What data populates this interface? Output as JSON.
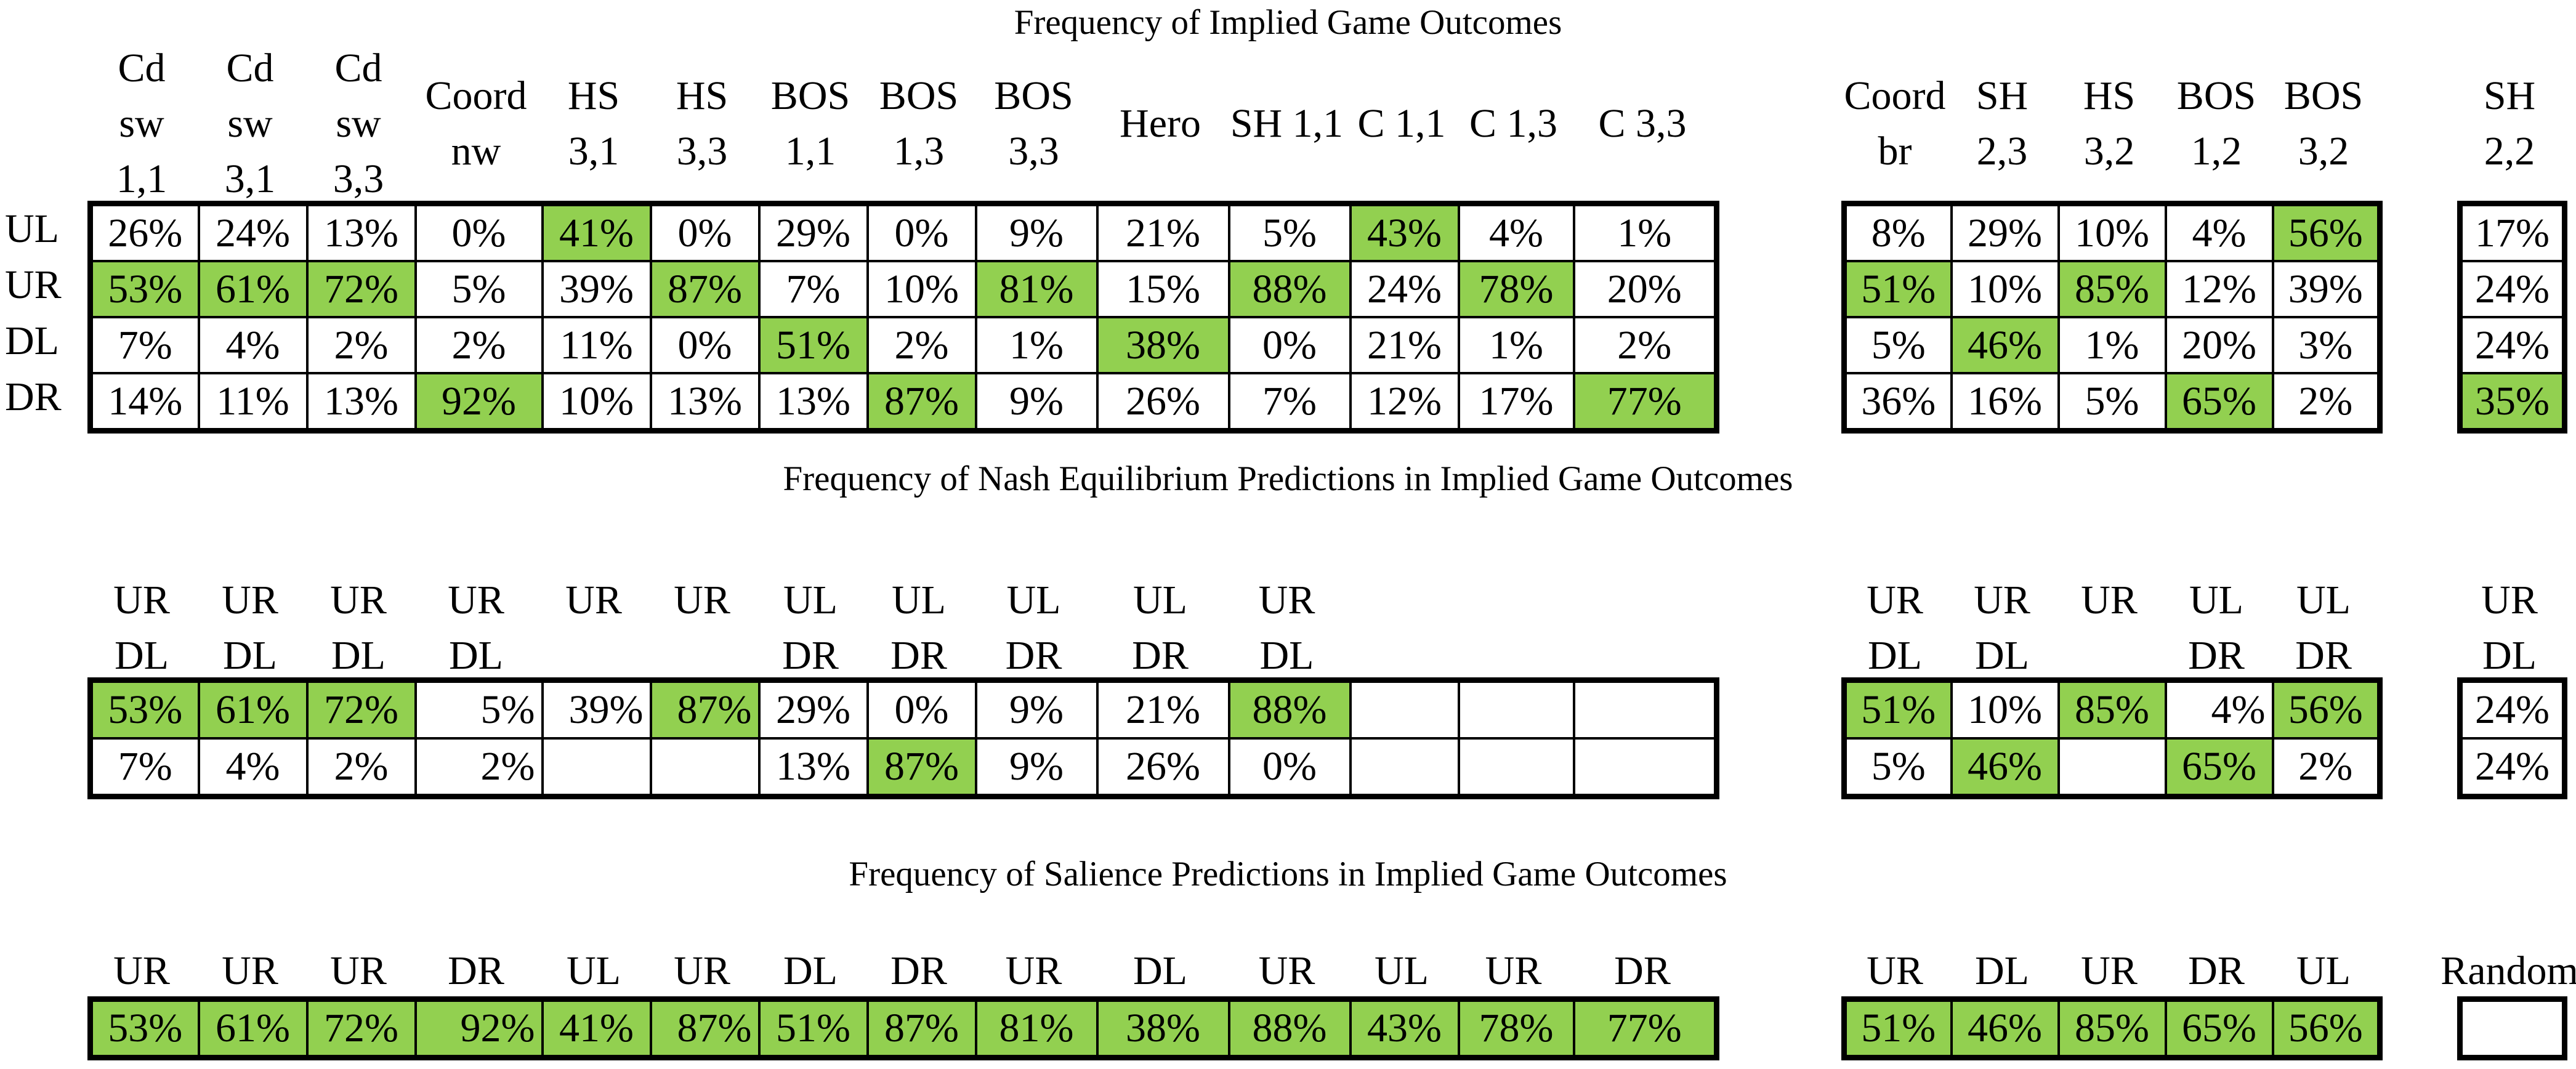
{
  "colors": {
    "highlight_green": "#92d050",
    "border": "#000000",
    "page_background": "#ffffff"
  },
  "sections": [
    {
      "title": "Frequency of Implied Game Outcomes",
      "row_labels": [
        "UL",
        "UR",
        "DL",
        "DR"
      ],
      "left": {
        "headers": [
          [
            "Cd",
            "sw",
            "1,1"
          ],
          [
            "Cd",
            "sw",
            "3,1"
          ],
          [
            "Cd",
            "sw",
            "3,3"
          ],
          [
            "Coord",
            "nw"
          ],
          [
            "HS",
            "3,1"
          ],
          [
            "HS",
            "3,3"
          ],
          [
            "BOS",
            "1,1"
          ],
          [
            "BOS",
            "1,3"
          ],
          [
            "BOS",
            "3,3"
          ],
          [
            "Hero"
          ],
          [
            "SH 1,1"
          ],
          [
            "C 1,1"
          ],
          [
            "C 1,3"
          ],
          [
            "C 3,3"
          ]
        ],
        "rows": [
          [
            {
              "v": "26%"
            },
            {
              "v": "24%"
            },
            {
              "v": "13%"
            },
            {
              "v": "0%"
            },
            {
              "v": "41%",
              "hl": true
            },
            {
              "v": "0%"
            },
            {
              "v": "29%"
            },
            {
              "v": "0%"
            },
            {
              "v": "9%"
            },
            {
              "v": "21%"
            },
            {
              "v": "5%"
            },
            {
              "v": "43%",
              "hl": true
            },
            {
              "v": "4%"
            },
            {
              "v": "1%"
            }
          ],
          [
            {
              "v": "53%",
              "hl": true
            },
            {
              "v": "61%",
              "hl": true
            },
            {
              "v": "72%",
              "hl": true
            },
            {
              "v": "5%"
            },
            {
              "v": "39%"
            },
            {
              "v": "87%",
              "hl": true
            },
            {
              "v": "7%"
            },
            {
              "v": "10%"
            },
            {
              "v": "81%",
              "hl": true
            },
            {
              "v": "15%"
            },
            {
              "v": "88%",
              "hl": true
            },
            {
              "v": "24%"
            },
            {
              "v": "78%",
              "hl": true
            },
            {
              "v": "20%"
            }
          ],
          [
            {
              "v": "7%"
            },
            {
              "v": "4%"
            },
            {
              "v": "2%"
            },
            {
              "v": "2%"
            },
            {
              "v": "11%"
            },
            {
              "v": "0%"
            },
            {
              "v": "51%",
              "hl": true
            },
            {
              "v": "2%"
            },
            {
              "v": "1%"
            },
            {
              "v": "38%",
              "hl": true
            },
            {
              "v": "0%"
            },
            {
              "v": "21%"
            },
            {
              "v": "1%"
            },
            {
              "v": "2%"
            }
          ],
          [
            {
              "v": "14%"
            },
            {
              "v": "11%"
            },
            {
              "v": "13%"
            },
            {
              "v": "92%",
              "hl": true
            },
            {
              "v": "10%"
            },
            {
              "v": "13%"
            },
            {
              "v": "13%"
            },
            {
              "v": "87%",
              "hl": true
            },
            {
              "v": "9%"
            },
            {
              "v": "26%"
            },
            {
              "v": "7%"
            },
            {
              "v": "12%"
            },
            {
              "v": "17%"
            },
            {
              "v": "77%",
              "hl": true
            }
          ]
        ]
      },
      "right": {
        "headers": [
          [
            "Coord",
            "br"
          ],
          [
            "SH",
            "2,3"
          ],
          [
            "HS",
            "3,2"
          ],
          [
            "BOS",
            "1,2"
          ],
          [
            "BOS",
            "3,2"
          ]
        ],
        "rows": [
          [
            {
              "v": "8%"
            },
            {
              "v": "29%"
            },
            {
              "v": "10%"
            },
            {
              "v": "4%"
            },
            {
              "v": "56%",
              "hl": true
            }
          ],
          [
            {
              "v": "51%",
              "hl": true
            },
            {
              "v": "10%"
            },
            {
              "v": "85%",
              "hl": true
            },
            {
              "v": "12%"
            },
            {
              "v": "39%"
            }
          ],
          [
            {
              "v": "5%"
            },
            {
              "v": "46%",
              "hl": true
            },
            {
              "v": "1%"
            },
            {
              "v": "20%"
            },
            {
              "v": "3%"
            }
          ],
          [
            {
              "v": "36%"
            },
            {
              "v": "16%"
            },
            {
              "v": "5%"
            },
            {
              "v": "65%",
              "hl": true
            },
            {
              "v": "2%"
            }
          ]
        ]
      },
      "single": {
        "headers": [
          [
            "SH",
            "2,2"
          ]
        ],
        "rows": [
          [
            {
              "v": "17%"
            }
          ],
          [
            {
              "v": "24%"
            }
          ],
          [
            {
              "v": "24%"
            }
          ],
          [
            {
              "v": "35%",
              "hl": true
            }
          ]
        ]
      }
    },
    {
      "title": "Frequency of Nash Equilibrium Predictions in Implied Game Outcomes",
      "left": {
        "headers": [
          [
            "UR",
            "DL"
          ],
          [
            "UR",
            "DL"
          ],
          [
            "UR",
            "DL"
          ],
          [
            "UR",
            "DL"
          ],
          [
            "UR"
          ],
          [
            "UR"
          ],
          [
            "UL",
            "DR"
          ],
          [
            "UL",
            "DR"
          ],
          [
            "UL",
            "DR"
          ],
          [
            "UL",
            "DR"
          ],
          [
            "UR",
            "DL"
          ],
          [],
          [],
          []
        ],
        "rows": [
          [
            {
              "v": "53%",
              "hl": true
            },
            {
              "v": "61%",
              "hl": true
            },
            {
              "v": "72%",
              "hl": true
            },
            {
              "v": "5%",
              "r": true
            },
            {
              "v": "39%",
              "r": true
            },
            {
              "v": "87%",
              "hl": true,
              "r": true
            },
            {
              "v": "29%"
            },
            {
              "v": "0%"
            },
            {
              "v": "9%"
            },
            {
              "v": "21%"
            },
            {
              "v": "88%",
              "hl": true
            },
            {
              "v": ""
            },
            {
              "v": ""
            },
            {
              "v": ""
            }
          ],
          [
            {
              "v": "7%"
            },
            {
              "v": "4%"
            },
            {
              "v": "2%"
            },
            {
              "v": "2%",
              "r": true
            },
            {
              "v": ""
            },
            {
              "v": ""
            },
            {
              "v": "13%"
            },
            {
              "v": "87%",
              "hl": true
            },
            {
              "v": "9%"
            },
            {
              "v": "26%"
            },
            {
              "v": "0%"
            },
            {
              "v": ""
            },
            {
              "v": ""
            },
            {
              "v": ""
            }
          ]
        ]
      },
      "right": {
        "headers": [
          [
            "UR",
            "DL"
          ],
          [
            "UR",
            "DL"
          ],
          [
            "UR"
          ],
          [
            "UL",
            "DR"
          ],
          [
            "UL",
            "DR"
          ]
        ],
        "rows": [
          [
            {
              "v": "51%",
              "hl": true
            },
            {
              "v": "10%"
            },
            {
              "v": "85%",
              "hl": true
            },
            {
              "v": "4%",
              "r": true
            },
            {
              "v": "56%",
              "hl": true
            }
          ],
          [
            {
              "v": "5%"
            },
            {
              "v": "46%",
              "hl": true
            },
            {
              "v": ""
            },
            {
              "v": "65%",
              "hl": true
            },
            {
              "v": "2%"
            }
          ]
        ]
      },
      "single": {
        "headers": [
          [
            "UR",
            "DL"
          ]
        ],
        "rows": [
          [
            {
              "v": "24%"
            }
          ],
          [
            {
              "v": "24%"
            }
          ]
        ]
      }
    },
    {
      "title": "Frequency of Salience Predictions in Implied Game Outcomes",
      "left": {
        "headers": [
          [
            "UR"
          ],
          [
            "UR"
          ],
          [
            "UR"
          ],
          [
            "DR"
          ],
          [
            "UL"
          ],
          [
            "UR"
          ],
          [
            "DL"
          ],
          [
            "DR"
          ],
          [
            "UR"
          ],
          [
            "DL"
          ],
          [
            "UR"
          ],
          [
            "UL"
          ],
          [
            "UR"
          ],
          [
            "DR"
          ]
        ],
        "rows": [
          [
            {
              "v": "53%",
              "hl": true
            },
            {
              "v": "61%",
              "hl": true
            },
            {
              "v": "72%",
              "hl": true
            },
            {
              "v": "92%",
              "hl": true,
              "r": true
            },
            {
              "v": "41%",
              "hl": true
            },
            {
              "v": "87%",
              "hl": true,
              "r": true
            },
            {
              "v": "51%",
              "hl": true
            },
            {
              "v": "87%",
              "hl": true
            },
            {
              "v": "81%",
              "hl": true
            },
            {
              "v": "38%",
              "hl": true
            },
            {
              "v": "88%",
              "hl": true
            },
            {
              "v": "43%",
              "hl": true
            },
            {
              "v": "78%",
              "hl": true
            },
            {
              "v": "77%",
              "hl": true
            }
          ]
        ]
      },
      "right": {
        "headers": [
          [
            "UR"
          ],
          [
            "DL"
          ],
          [
            "UR"
          ],
          [
            "DR"
          ],
          [
            "UL"
          ]
        ],
        "rows": [
          [
            {
              "v": "51%",
              "hl": true
            },
            {
              "v": "46%",
              "hl": true
            },
            {
              "v": "85%",
              "hl": true
            },
            {
              "v": "65%",
              "hl": true
            },
            {
              "v": "56%",
              "hl": true
            }
          ]
        ]
      },
      "single": {
        "headers": [
          [
            "Random"
          ]
        ],
        "rows": [
          [
            {
              "v": ""
            }
          ]
        ]
      }
    }
  ]
}
